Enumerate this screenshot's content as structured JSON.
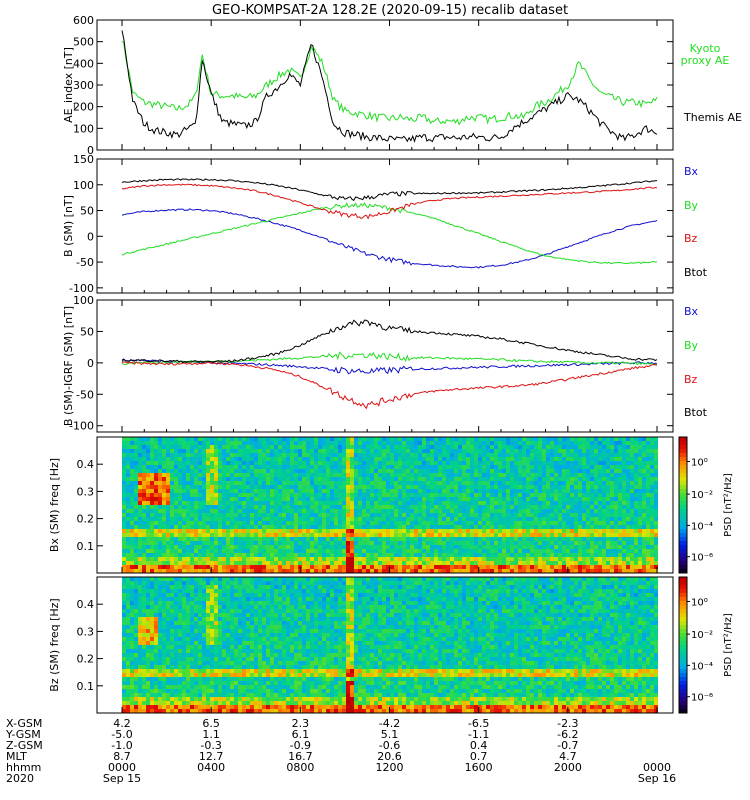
{
  "title": "GEO-KOMPSAT-2A 128.2E (2020-09-15) recalib dataset",
  "colors": {
    "black": "#000000",
    "green": "#22dd22",
    "red": "#dd1111",
    "blue": "#1111cc"
  },
  "chart_data": [
    {
      "type": "line",
      "panel": "ae",
      "ylabel": "AE_index [nT]",
      "ylim": [
        0,
        600
      ],
      "yticks": [
        "0",
        "100",
        "200",
        "300",
        "400",
        "500",
        "600"
      ],
      "ytick_values": [
        0,
        100,
        200,
        300,
        400,
        500,
        600
      ],
      "x": [
        0,
        0.5,
        1,
        1.5,
        2,
        2.5,
        3,
        3.3,
        3.6,
        4,
        4.5,
        5,
        5.5,
        6,
        6.5,
        7,
        7.5,
        8,
        8.5,
        9,
        9.5,
        10,
        10.5,
        11,
        11.5,
        12,
        12.5,
        13,
        13.5,
        14,
        14.5,
        15,
        15.5,
        16,
        16.5,
        17,
        17.5,
        18,
        18.5,
        19,
        19.5,
        20,
        20.5,
        21,
        21.5,
        22,
        22.5,
        23,
        23.5,
        24
      ],
      "series": [
        {
          "name": "Kyoto proxy AE",
          "color": "#22dd22",
          "values": [
            520,
            260,
            220,
            210,
            200,
            190,
            210,
            250,
            440,
            260,
            250,
            250,
            240,
            250,
            300,
            340,
            370,
            330,
            480,
            400,
            230,
            180,
            170,
            160,
            150,
            145,
            150,
            140,
            150,
            130,
            135,
            130,
            150,
            150,
            140,
            150,
            160,
            150,
            200,
            220,
            260,
            300,
            400,
            320,
            260,
            240,
            220,
            220,
            210,
            230
          ]
        },
        {
          "name": "Themis AE",
          "color": "#000000",
          "values": [
            560,
            220,
            120,
            90,
            80,
            70,
            100,
            120,
            420,
            260,
            130,
            120,
            110,
            130,
            250,
            290,
            350,
            300,
            490,
            330,
            120,
            80,
            70,
            60,
            55,
            50,
            45,
            50,
            60,
            55,
            60,
            55,
            60,
            60,
            55,
            60,
            100,
            130,
            160,
            190,
            220,
            250,
            230,
            180,
            120,
            80,
            50,
            70,
            100,
            80
          ]
        }
      ]
    },
    {
      "type": "line",
      "panel": "bsm",
      "ylabel": "B (SM) [nT]",
      "ylim": [
        -110,
        150
      ],
      "yticks": [
        "-100",
        "-50",
        "0",
        "50",
        "100",
        "150"
      ],
      "ytick_values": [
        -100,
        -50,
        0,
        50,
        100,
        150
      ],
      "x": [
        0,
        1,
        2,
        3,
        4,
        5,
        6,
        7,
        8,
        9,
        10,
        11,
        12,
        13,
        14,
        15,
        16,
        17,
        18,
        19,
        20,
        21,
        22,
        23,
        24
      ],
      "series": [
        {
          "name": "Bx",
          "color": "#1111cc",
          "values": [
            42,
            48,
            51,
            52,
            50,
            44,
            35,
            24,
            12,
            -3,
            -20,
            -35,
            -45,
            -52,
            -56,
            -59,
            -60,
            -56,
            -48,
            -36,
            -20,
            -5,
            10,
            22,
            30
          ]
        },
        {
          "name": "By",
          "color": "#22dd22",
          "values": [
            -35,
            -25,
            -15,
            -5,
            5,
            15,
            25,
            35,
            45,
            55,
            60,
            60,
            55,
            45,
            35,
            20,
            5,
            -10,
            -25,
            -38,
            -45,
            -50,
            -52,
            -52,
            -50
          ]
        },
        {
          "name": "Bz",
          "color": "#dd1111",
          "values": [
            92,
            98,
            100,
            100,
            98,
            94,
            88,
            78,
            65,
            52,
            42,
            38,
            48,
            62,
            70,
            74,
            76,
            78,
            80,
            82,
            84,
            86,
            88,
            92,
            95
          ]
        },
        {
          "name": "Btot",
          "color": "#000000",
          "values": [
            105,
            108,
            110,
            110,
            110,
            108,
            104,
            98,
            90,
            80,
            72,
            75,
            82,
            83,
            83,
            84,
            84,
            86,
            88,
            90,
            93,
            96,
            100,
            104,
            108
          ]
        }
      ]
    },
    {
      "type": "line",
      "panel": "bigrf",
      "ylabel": "B (SM)-IGRF (SM) [nT]",
      "ylim": [
        -110,
        100
      ],
      "yticks": [
        "-100",
        "-50",
        "0",
        "50",
        "100"
      ],
      "ytick_values": [
        -100,
        -50,
        0,
        50,
        100
      ],
      "x": [
        0,
        1,
        2,
        3,
        4,
        5,
        6,
        7,
        8,
        9,
        10,
        11,
        12,
        13,
        14,
        15,
        16,
        17,
        18,
        19,
        20,
        21,
        22,
        23,
        24
      ],
      "series": [
        {
          "name": "Bx",
          "color": "#1111cc",
          "values": [
            5,
            4,
            2,
            1,
            0,
            -1,
            -2,
            -4,
            -6,
            -9,
            -12,
            -14,
            -12,
            -10,
            -9,
            -8,
            -7,
            -6,
            -5,
            -4,
            -3,
            -2,
            -1,
            0,
            0
          ]
        },
        {
          "name": "By",
          "color": "#22dd22",
          "values": [
            -2,
            0,
            1,
            2,
            2,
            3,
            4,
            6,
            8,
            10,
            12,
            13,
            10,
            8,
            8,
            7,
            6,
            5,
            3,
            2,
            1,
            0,
            0,
            -1,
            -2
          ]
        },
        {
          "name": "Bz",
          "color": "#dd1111",
          "values": [
            0,
            -1,
            -2,
            -1,
            0,
            -2,
            -6,
            -12,
            -22,
            -38,
            -55,
            -68,
            -58,
            -50,
            -45,
            -42,
            -40,
            -38,
            -36,
            -32,
            -26,
            -20,
            -14,
            -8,
            -4
          ]
        },
        {
          "name": "Btot",
          "color": "#000000",
          "values": [
            4,
            4,
            3,
            2,
            2,
            3,
            8,
            15,
            28,
            45,
            60,
            66,
            55,
            50,
            48,
            45,
            42,
            38,
            32,
            26,
            20,
            15,
            10,
            6,
            5
          ]
        }
      ]
    },
    {
      "type": "heatmap",
      "panel": "bx-spec",
      "ylabel": "Bx (SM) freq [Hz]",
      "yticks": [
        "0.1",
        "0.2",
        "0.3",
        "0.4"
      ],
      "ytick_values": [
        0.1,
        0.2,
        0.3,
        0.4
      ],
      "ylim": [
        0,
        0.5
      ],
      "colorbar_label": "PSD [nT²/Hz]",
      "colorbar_ticks": [
        "10⁰",
        "10⁻²",
        "10⁻⁴",
        "10⁻⁶"
      ]
    },
    {
      "type": "heatmap",
      "panel": "bz-spec",
      "ylabel": "Bz (SM) freq [Hz]",
      "yticks": [
        "0.1",
        "0.2",
        "0.3",
        "0.4"
      ],
      "ytick_values": [
        0.1,
        0.2,
        0.3,
        0.4
      ],
      "ylim": [
        0,
        0.5
      ],
      "colorbar_label": "PSD [nT²/Hz]",
      "colorbar_ticks": [
        "10⁰",
        "10⁻²",
        "10⁻⁴",
        "10⁻⁶"
      ]
    }
  ],
  "side_labels": {
    "ae": [
      "Kyoto",
      "proxy AE",
      "Themis AE"
    ],
    "b": [
      "Bx",
      "By",
      "Bz",
      "Btot"
    ]
  },
  "ephemeris": {
    "row_labels": [
      "X-GSM",
      "Y-GSM",
      "Z-GSM",
      "MLT",
      "hhmm",
      "2020"
    ],
    "columns": [
      [
        "4.2",
        "-5.0",
        "-1.0",
        "8.7",
        "0000",
        "Sep 15"
      ],
      [
        "6.5",
        "1.1",
        "-0.3",
        "12.7",
        "0400",
        ""
      ],
      [
        "2.3",
        "6.1",
        "-0.9",
        "16.7",
        "0800",
        ""
      ],
      [
        "-4.2",
        "5.1",
        "-0.6",
        "20.6",
        "1200",
        ""
      ],
      [
        "-6.5",
        "-1.1",
        "0.4",
        "0.7",
        "1600",
        ""
      ],
      [
        "-2.3",
        "-6.2",
        "-0.7",
        "4.7",
        "2000",
        ""
      ],
      [
        "",
        "",
        "",
        "",
        "0000",
        "Sep 16"
      ]
    ]
  }
}
